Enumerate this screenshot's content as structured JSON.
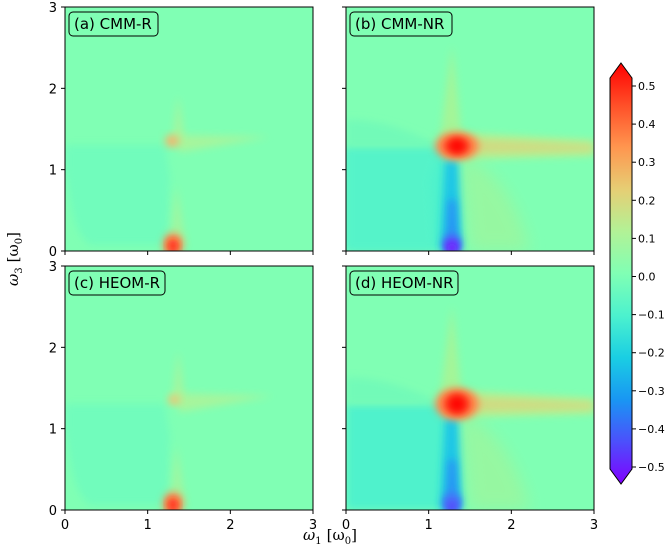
{
  "chart_data": {
    "type": "heatmap",
    "xlabel": "ω1 [ω0]",
    "ylabel": "ω3 [ω0]",
    "xlabel_main": "ω",
    "xlabel_sub": "1",
    "xlabel_unit": "[ω",
    "xlabel_unit_sub": "0",
    "xlabel_close": "]",
    "ylabel_main": "ω",
    "ylabel_sub": "3",
    "ylabel_unit": "[ω",
    "ylabel_unit_sub": "0",
    "ylabel_close": "]",
    "xlim": [
      0,
      3
    ],
    "ylim": [
      0,
      3
    ],
    "x_ticks": [
      "0",
      "1",
      "2",
      "3"
    ],
    "y_ticks": [
      "0",
      "1",
      "2",
      "3"
    ],
    "panels": [
      {
        "label": "(a) CMM-R",
        "features": [
          {
            "kind": "peak",
            "x": 1.3,
            "y": 0.07,
            "amplitude": 0.5
          },
          {
            "kind": "peak",
            "x": 1.3,
            "y": 1.28,
            "amplitude": 0.15
          },
          {
            "kind": "ridge_horizontal",
            "y": 1.35,
            "x_from": 1.3,
            "x_to": 2.5,
            "amplitude": 0.08
          },
          {
            "kind": "ridge_vertical",
            "x": 1.35,
            "y_from": 1.3,
            "y_to": 1.85,
            "amplitude": 0.08
          },
          {
            "kind": "ridge_vertical",
            "x": 1.35,
            "y_from": 0.1,
            "y_to": 0.85,
            "amplitude": 0.06
          },
          {
            "kind": "trough_region",
            "x_from": 0.0,
            "x_to": 1.2,
            "y_from": 0.1,
            "y_to": 1.25,
            "amplitude": -0.04
          }
        ]
      },
      {
        "label": "(b) CMM-NR",
        "features": [
          {
            "kind": "peak",
            "x": 1.25,
            "y": 1.3,
            "amplitude": 0.5
          },
          {
            "kind": "trough",
            "x": 1.25,
            "y": 0.08,
            "amplitude": -0.5
          },
          {
            "kind": "ridge_horizontal",
            "y": 1.3,
            "x_from": 1.3,
            "x_to": 3.0,
            "amplitude": 0.15
          },
          {
            "kind": "ridge_vertical",
            "x": 1.25,
            "y_from": 1.3,
            "y_to": 2.5,
            "amplitude": 0.12
          },
          {
            "kind": "trough_region",
            "x_from": 0.0,
            "x_to": 1.2,
            "y_from": 0.0,
            "y_to": 1.25,
            "amplitude": -0.15
          }
        ]
      },
      {
        "label": "(c) HEOM-R",
        "features": [
          {
            "kind": "peak",
            "x": 1.3,
            "y": 0.07,
            "amplitude": 0.5
          },
          {
            "kind": "peak",
            "x": 1.3,
            "y": 1.3,
            "amplitude": 0.12
          },
          {
            "kind": "ridge_horizontal",
            "y": 1.35,
            "x_from": 1.3,
            "x_to": 2.55,
            "amplitude": 0.08
          },
          {
            "kind": "ridge_vertical",
            "x": 1.35,
            "y_from": 1.3,
            "y_to": 1.85,
            "amplitude": 0.08
          },
          {
            "kind": "ridge_vertical",
            "x": 1.35,
            "y_from": 0.1,
            "y_to": 0.85,
            "amplitude": 0.06
          },
          {
            "kind": "trough_region",
            "x_from": 0.0,
            "x_to": 1.2,
            "y_from": 0.1,
            "y_to": 1.25,
            "amplitude": -0.04
          }
        ]
      },
      {
        "label": "(d) HEOM-NR",
        "features": [
          {
            "kind": "peak",
            "x": 1.3,
            "y": 1.3,
            "amplitude": 0.5
          },
          {
            "kind": "trough",
            "x": 1.25,
            "y": 0.08,
            "amplitude": -0.4
          },
          {
            "kind": "ridge_horizontal",
            "y": 1.3,
            "x_from": 1.3,
            "x_to": 3.0,
            "amplitude": 0.15
          },
          {
            "kind": "ridge_vertical",
            "x": 1.25,
            "y_from": 1.3,
            "y_to": 2.5,
            "amplitude": 0.12
          },
          {
            "kind": "trough_region",
            "x_from": 0.0,
            "x_to": 1.2,
            "y_from": 0.0,
            "y_to": 1.25,
            "amplitude": -0.15
          }
        ]
      }
    ],
    "colorbar": {
      "colormap": "rainbow",
      "range": [
        -0.5,
        0.5
      ],
      "ticks": [
        "0.5",
        "0.4",
        "0.3",
        "0.2",
        "0.1",
        "0.0",
        "−0.1",
        "−0.2",
        "−0.3",
        "−0.4",
        "−0.5"
      ],
      "extend": "both"
    },
    "grid": false
  }
}
